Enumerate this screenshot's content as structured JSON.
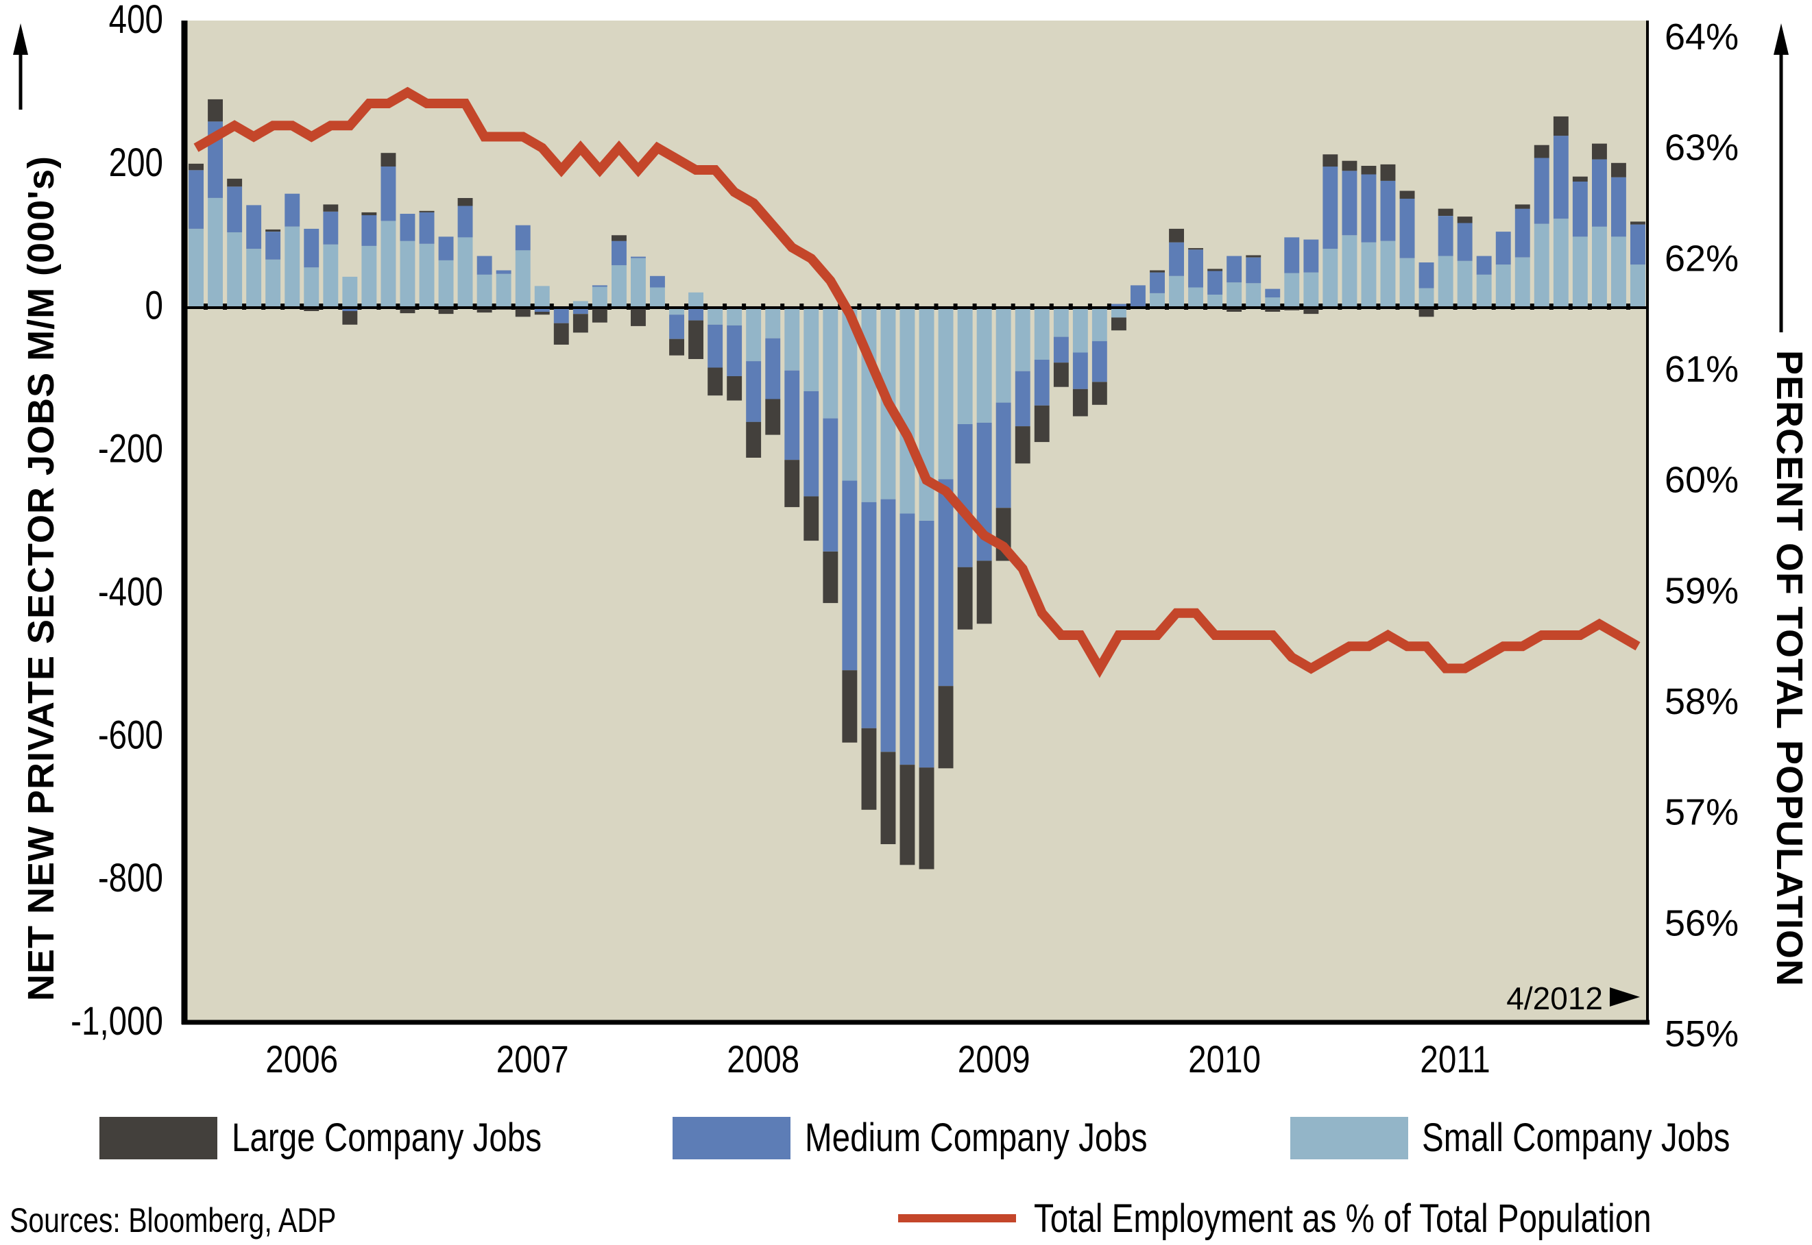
{
  "chart_data": {
    "type": "bar",
    "subtype": "stacked-bar-with-line-overlay",
    "title": "",
    "ylabel": "NET NEW PRIVATE SECTOR JOBS M/M (000's)",
    "y2label": "PERCENT OF TOTAL POPULATION",
    "xlabel": "",
    "ylim": [
      -1000,
      400
    ],
    "y2lim": [
      55,
      64
    ],
    "y_ticks": [
      "400",
      "200",
      "0",
      "-200",
      "-400",
      "-600",
      "-800",
      "-1,000"
    ],
    "y_tick_values": [
      400,
      200,
      0,
      -200,
      -400,
      -600,
      -800,
      -1000
    ],
    "y2_ticks": [
      "64%",
      "63%",
      "62%",
      "61%",
      "60%",
      "59%",
      "58%",
      "57%",
      "56%",
      "55%"
    ],
    "y2_tick_values": [
      64,
      63,
      62,
      61,
      60,
      59,
      58,
      57,
      56,
      55
    ],
    "x_year_labels": [
      "2006",
      "2007",
      "2008",
      "2009",
      "2010",
      "2011"
    ],
    "x_period": "monthly, Jan 2006 to Apr 2012",
    "end_annotation": "4/2012",
    "grid": false,
    "legend_position": "bottom",
    "series": [
      {
        "name": "Small Company Jobs",
        "color": "#93b5c8",
        "values": [
          109,
          152,
          104,
          81,
          66,
          112,
          55,
          87,
          42,
          85,
          120,
          92,
          88,
          65,
          97,
          45,
          46,
          79,
          29,
          0,
          8,
          28,
          58,
          68,
          27,
          -11,
          20,
          -25,
          -26,
          -76,
          -44,
          -89,
          -118,
          -156,
          -243,
          -273,
          -269,
          -289,
          -299,
          -241,
          -164,
          -162,
          -134,
          -90,
          -74,
          -42,
          -64,
          -48,
          -15,
          0,
          19,
          43,
          27,
          17,
          34,
          33,
          13,
          47,
          48,
          81,
          100,
          90,
          92,
          68,
          26,
          71,
          64,
          45,
          59,
          69,
          116,
          123,
          98,
          112,
          98,
          59
        ]
      },
      {
        "name": "Medium Company Jobs",
        "color": "#5d7db6",
        "values": [
          82,
          107,
          64,
          61,
          39,
          46,
          54,
          46,
          -6,
          43,
          76,
          38,
          44,
          33,
          44,
          26,
          5,
          35,
          -7,
          -23,
          -10,
          2,
          34,
          2,
          16,
          -34,
          -19,
          -60,
          -71,
          -85,
          -85,
          -125,
          -147,
          -186,
          -265,
          -316,
          -353,
          -351,
          -345,
          -289,
          -200,
          -193,
          -147,
          -77,
          -64,
          -36,
          -51,
          -57,
          4,
          30,
          29,
          47,
          53,
          33,
          37,
          36,
          12,
          50,
          46,
          115,
          90,
          95,
          84,
          83,
          36,
          56,
          53,
          26,
          46,
          68,
          92,
          116,
          77,
          94,
          83,
          56
        ]
      },
      {
        "name": "Large Company Jobs",
        "color": "#43403c",
        "values": [
          9,
          31,
          11,
          0,
          3,
          0,
          -6,
          10,
          -19,
          4,
          19,
          -9,
          2,
          -10,
          11,
          -8,
          -4,
          -14,
          -4,
          -30,
          -26,
          -22,
          8,
          -27,
          0,
          -23,
          -54,
          -39,
          -34,
          -50,
          -50,
          -66,
          -62,
          -72,
          -101,
          -114,
          -129,
          -140,
          -142,
          -115,
          -87,
          -88,
          -74,
          -52,
          -51,
          -34,
          -38,
          -32,
          -18,
          -3,
          3,
          19,
          2,
          3,
          -7,
          3,
          -7,
          -5,
          -10,
          17,
          14,
          12,
          23,
          11,
          -14,
          10,
          9,
          -3,
          0,
          6,
          18,
          27,
          7,
          22,
          20,
          4
        ]
      }
    ],
    "line_series": {
      "name": "Total Employment as % of Total Population",
      "axis": "right",
      "color": "#c4462a",
      "values": [
        63.0,
        63.1,
        63.2,
        63.1,
        63.2,
        63.2,
        63.1,
        63.2,
        63.2,
        63.4,
        63.4,
        63.5,
        63.4,
        63.4,
        63.4,
        63.1,
        63.1,
        63.1,
        63.0,
        62.8,
        63.0,
        62.8,
        63.0,
        62.8,
        63.0,
        62.9,
        62.8,
        62.8,
        62.6,
        62.5,
        62.3,
        62.1,
        62.0,
        61.8,
        61.5,
        61.1,
        60.7,
        60.4,
        60.0,
        59.9,
        59.7,
        59.5,
        59.4,
        59.2,
        58.8,
        58.6,
        58.6,
        58.3,
        58.6,
        58.6,
        58.6,
        58.8,
        58.8,
        58.6,
        58.6,
        58.6,
        58.6,
        58.4,
        58.3,
        58.4,
        58.5,
        58.5,
        58.6,
        58.5,
        58.5,
        58.3,
        58.3,
        58.4,
        58.5,
        58.5,
        58.6,
        58.6,
        58.6,
        58.7,
        58.6,
        58.5
      ]
    }
  },
  "legend": {
    "large": "Large Company Jobs",
    "medium": "Medium Company Jobs",
    "small": "Small Company Jobs",
    "line": "Total Employment as % of Total Population"
  },
  "colors": {
    "plot_background": "#d9d6c2",
    "large": "#43403c",
    "medium": "#5d7db6",
    "small": "#93b5c8",
    "line": "#c4462a"
  },
  "footer": {
    "sources": "Sources:  Bloomberg, ADP"
  }
}
